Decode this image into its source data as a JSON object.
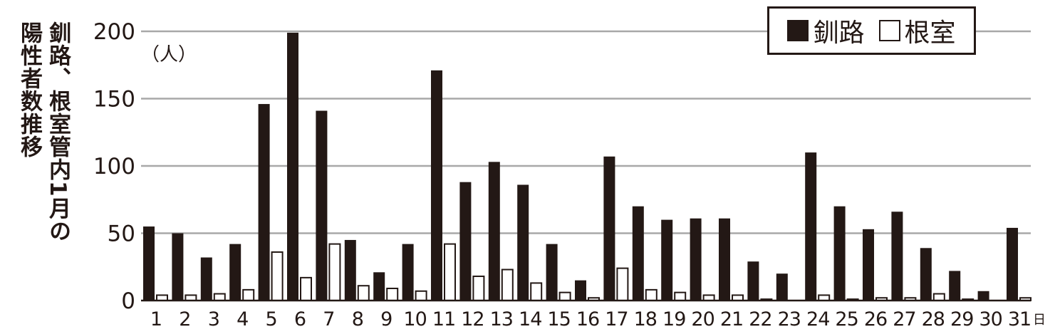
{
  "title_lines": [
    "釧路、根室管内1月の",
    "陽性者数推移"
  ],
  "chart_data": {
    "type": "bar",
    "unit_label": "（人）",
    "x_suffix": "日",
    "categories": [
      "1",
      "2",
      "3",
      "4",
      "5",
      "6",
      "7",
      "8",
      "9",
      "10",
      "11",
      "12",
      "13",
      "14",
      "15",
      "16",
      "17",
      "18",
      "19",
      "20",
      "21",
      "22",
      "23",
      "24",
      "25",
      "26",
      "27",
      "28",
      "29",
      "30",
      "31"
    ],
    "series": [
      {
        "name": "釧路",
        "color": "#231815",
        "values": [
          55,
          50,
          32,
          42,
          146,
          199,
          141,
          45,
          21,
          42,
          171,
          88,
          103,
          86,
          42,
          15,
          107,
          70,
          60,
          61,
          61,
          29,
          20,
          110,
          70,
          53,
          66,
          39,
          22,
          7,
          54
        ]
      },
      {
        "name": "根室",
        "color": "#ffffff",
        "values": [
          4,
          4,
          5,
          8,
          36,
          17,
          42,
          11,
          9,
          7,
          42,
          18,
          23,
          13,
          6,
          2,
          24,
          8,
          6,
          4,
          4,
          1,
          0,
          4,
          1,
          2,
          2,
          5,
          1,
          0,
          2
        ]
      }
    ],
    "ylim": [
      0,
      200
    ],
    "yticks": [
      "0",
      "50",
      "100",
      "150",
      "200"
    ],
    "grid": true,
    "legend_position": "top-right"
  }
}
